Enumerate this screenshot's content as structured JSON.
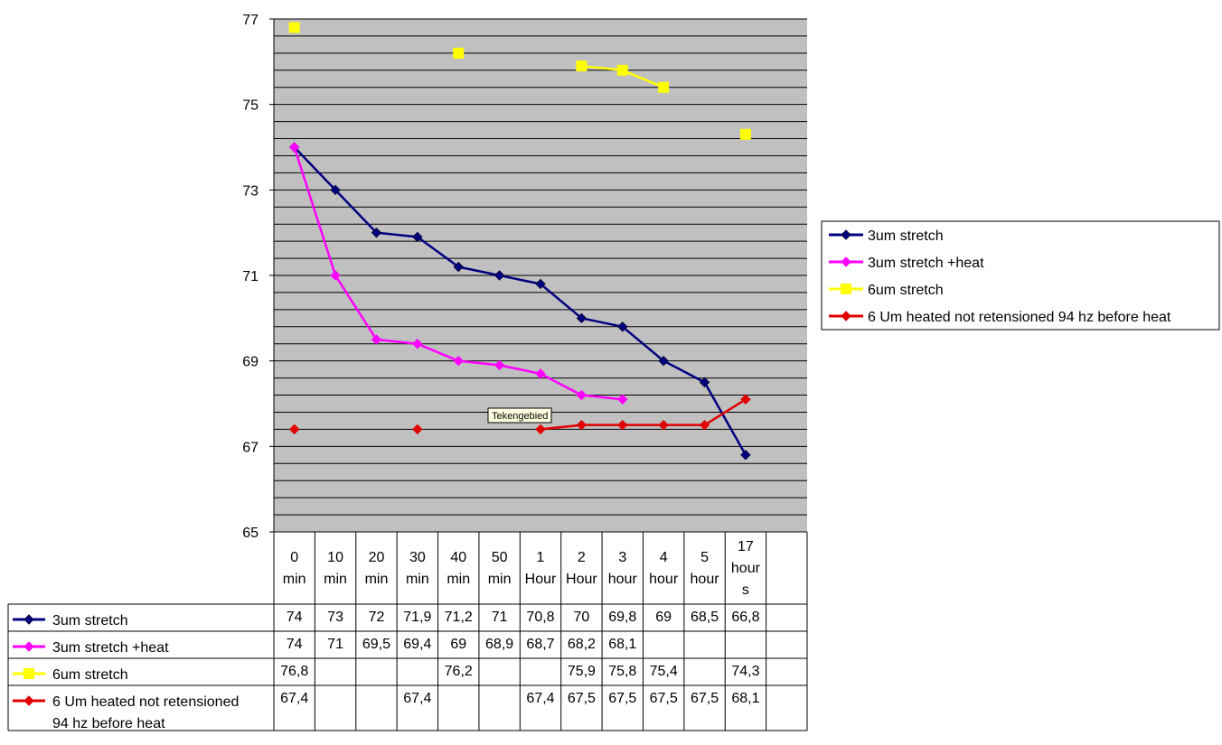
{
  "chart_data": {
    "type": "line",
    "categories": [
      "0\nmin",
      "10\nmin",
      "20\nmin",
      "30\nmin",
      "40\nmin",
      "50\nmin",
      "1\nHour",
      "2\nHour",
      "3\nhour",
      "4\nhour",
      "5\nhour",
      "17\nhour\ns",
      ""
    ],
    "ylim": [
      65,
      77
    ],
    "yticks": [
      65,
      67,
      69,
      71,
      73,
      75,
      77
    ],
    "grid": true,
    "plot_background": "#c0c0c0",
    "legend_position": "right",
    "series": [
      {
        "name": "3um stretch",
        "color": "#000080",
        "marker": "diamond",
        "values": [
          74,
          73,
          72,
          71.9,
          71.2,
          71,
          70.8,
          70,
          69.8,
          69,
          68.5,
          66.8,
          null
        ],
        "labels": [
          "74",
          "73",
          "72",
          "71,9",
          "71,2",
          "71",
          "70,8",
          "70",
          "69,8",
          "69",
          "68,5",
          "66,8",
          ""
        ]
      },
      {
        "name": "3um stretch +heat",
        "color": "#ff00ff",
        "marker": "diamond",
        "values": [
          74,
          71,
          69.5,
          69.4,
          69,
          68.9,
          68.7,
          68.2,
          68.1,
          null,
          null,
          null,
          null
        ],
        "labels": [
          "74",
          "71",
          "69,5",
          "69,4",
          "69",
          "68,9",
          "68,7",
          "68,2",
          "68,1",
          "",
          "",
          "",
          ""
        ]
      },
      {
        "name": "6um stretch",
        "color": "#ffff00",
        "marker": "square",
        "values": [
          76.8,
          null,
          null,
          null,
          76.2,
          null,
          null,
          75.9,
          75.8,
          75.4,
          null,
          74.3,
          null
        ],
        "labels": [
          "76,8",
          "",
          "",
          "",
          "76,2",
          "",
          "",
          "75,9",
          "75,8",
          "75,4",
          "",
          "74,3",
          ""
        ]
      },
      {
        "name": "6 Um heated not retensioned 94 hz before heat",
        "table_name": "6 Um heated not retensioned\n94 hz before heat",
        "color": "#e00000",
        "marker": "diamond",
        "values": [
          67.4,
          null,
          null,
          67.4,
          null,
          null,
          67.4,
          67.5,
          67.5,
          67.5,
          67.5,
          68.1,
          null
        ],
        "labels": [
          "67,4",
          "",
          "",
          "67,4",
          "",
          "",
          "67,4",
          "67,5",
          "67,5",
          "67,5",
          "67,5",
          "68,1",
          ""
        ]
      }
    ],
    "tooltip": "Tekengebied"
  }
}
